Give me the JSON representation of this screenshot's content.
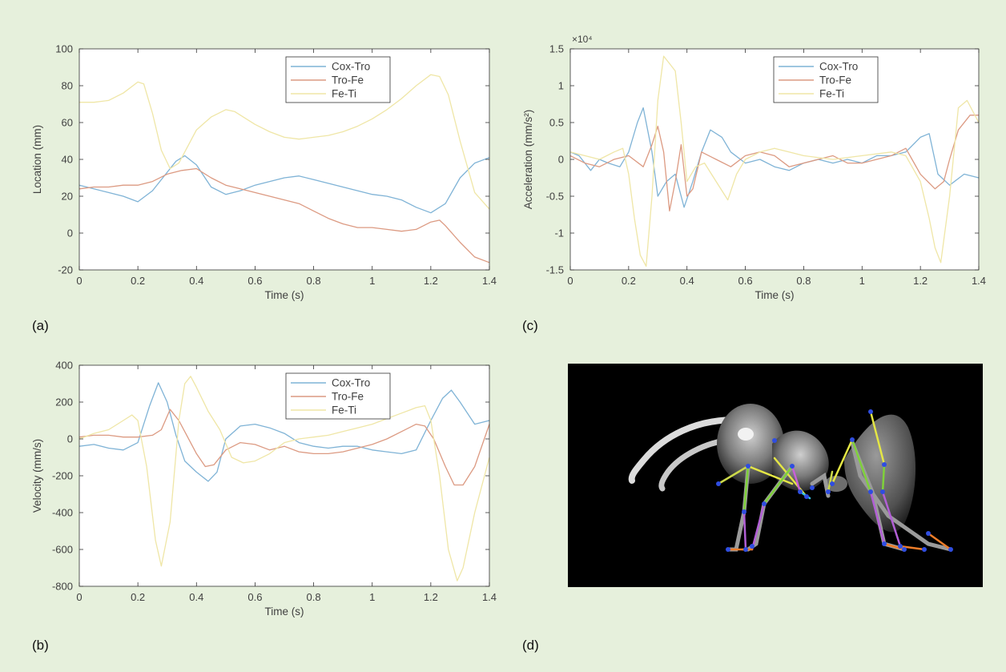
{
  "panel_labels": {
    "a": "(a)",
    "b": "(b)",
    "c": "(c)",
    "d": "(d)"
  },
  "colors": {
    "background": "#e6f0dc",
    "cox_tro": "#7fb3d6",
    "tro_fe": "#dc9a82",
    "fe_ti": "#efe6a6",
    "axis": "#333333"
  },
  "chart_data": [
    {
      "id": "a",
      "type": "line",
      "xlabel": "Time (s)",
      "ylabel": "Location (mm)",
      "xlim": [
        0,
        1.4
      ],
      "ylim": [
        -20,
        100
      ],
      "xticks": [
        0,
        0.2,
        0.4,
        0.6,
        0.8,
        1,
        1.2,
        1.4
      ],
      "xtick_labels": [
        "0",
        "0.2",
        "0.4",
        "0.6",
        "0.8",
        "1",
        "1.2",
        "1.4"
      ],
      "yticks": [
        -20,
        0,
        20,
        40,
        60,
        80,
        100
      ],
      "ytick_labels": [
        "-20",
        "0",
        "20",
        "40",
        "60",
        "80",
        "100"
      ],
      "exponent_label": "",
      "legend": "top-right",
      "series": [
        {
          "name": "Cox-Tro",
          "color": "#7fb3d6",
          "x": [
            0,
            0.05,
            0.1,
            0.15,
            0.2,
            0.25,
            0.3,
            0.33,
            0.36,
            0.4,
            0.45,
            0.5,
            0.55,
            0.6,
            0.65,
            0.7,
            0.75,
            0.8,
            0.85,
            0.9,
            0.95,
            1.0,
            1.05,
            1.1,
            1.15,
            1.2,
            1.25,
            1.3,
            1.35,
            1.4
          ],
          "y": [
            26,
            24,
            22,
            20,
            17,
            23,
            33,
            39,
            42,
            37,
            25,
            21,
            23,
            26,
            28,
            30,
            31,
            29,
            27,
            25,
            23,
            21,
            20,
            18,
            14,
            11,
            16,
            30,
            38,
            41
          ]
        },
        {
          "name": "Tro-Fe",
          "color": "#dc9a82",
          "x": [
            0,
            0.05,
            0.1,
            0.15,
            0.2,
            0.25,
            0.3,
            0.35,
            0.4,
            0.45,
            0.5,
            0.55,
            0.6,
            0.65,
            0.7,
            0.75,
            0.8,
            0.85,
            0.9,
            0.95,
            1.0,
            1.05,
            1.1,
            1.15,
            1.2,
            1.23,
            1.25,
            1.3,
            1.35,
            1.4
          ],
          "y": [
            24,
            25,
            25,
            26,
            26,
            28,
            32,
            34,
            35,
            30,
            26,
            24,
            22,
            20,
            18,
            16,
            12,
            8,
            5,
            3,
            3,
            2,
            1,
            2,
            6,
            7,
            4,
            -5,
            -13,
            -16
          ]
        },
        {
          "name": "Fe-Ti",
          "color": "#efe6a6",
          "x": [
            0,
            0.05,
            0.1,
            0.15,
            0.2,
            0.22,
            0.25,
            0.28,
            0.31,
            0.34,
            0.37,
            0.4,
            0.45,
            0.5,
            0.53,
            0.6,
            0.65,
            0.7,
            0.75,
            0.8,
            0.85,
            0.9,
            0.95,
            1.0,
            1.05,
            1.1,
            1.15,
            1.2,
            1.23,
            1.26,
            1.3,
            1.35,
            1.4
          ],
          "y": [
            71,
            71,
            72,
            76,
            82,
            81,
            65,
            45,
            35,
            38,
            47,
            56,
            63,
            67,
            66,
            59,
            55,
            52,
            51,
            52,
            53,
            55,
            58,
            62,
            67,
            73,
            80,
            86,
            85,
            75,
            50,
            22,
            13
          ]
        }
      ]
    },
    {
      "id": "b",
      "type": "line",
      "xlabel": "Time (s)",
      "ylabel": "Velocity (mm/s)",
      "xlim": [
        0,
        1.4
      ],
      "ylim": [
        -800,
        400
      ],
      "xticks": [
        0,
        0.2,
        0.4,
        0.6,
        0.8,
        1,
        1.2,
        1.4
      ],
      "xtick_labels": [
        "0",
        "0.2",
        "0.4",
        "0.6",
        "0.8",
        "1",
        "1.2",
        "1.4"
      ],
      "yticks": [
        -800,
        -600,
        -400,
        -200,
        0,
        200,
        400
      ],
      "ytick_labels": [
        "-800",
        "-600",
        "-400",
        "-200",
        "0",
        "200",
        "400"
      ],
      "exponent_label": "",
      "legend": "top-right",
      "series": [
        {
          "name": "Cox-Tro",
          "color": "#7fb3d6",
          "x": [
            0,
            0.05,
            0.1,
            0.15,
            0.2,
            0.24,
            0.27,
            0.3,
            0.33,
            0.36,
            0.4,
            0.44,
            0.47,
            0.5,
            0.55,
            0.6,
            0.65,
            0.7,
            0.75,
            0.8,
            0.85,
            0.9,
            0.95,
            1.0,
            1.05,
            1.1,
            1.15,
            1.2,
            1.24,
            1.27,
            1.3,
            1.35,
            1.4
          ],
          "y": [
            -40,
            -30,
            -50,
            -60,
            -20,
            180,
            305,
            200,
            20,
            -120,
            -180,
            -230,
            -180,
            0,
            70,
            80,
            60,
            30,
            -20,
            -40,
            -50,
            -40,
            -40,
            -60,
            -70,
            -80,
            -60,
            100,
            220,
            265,
            200,
            80,
            100
          ]
        },
        {
          "name": "Tro-Fe",
          "color": "#dc9a82",
          "x": [
            0,
            0.05,
            0.1,
            0.15,
            0.2,
            0.25,
            0.28,
            0.31,
            0.34,
            0.37,
            0.4,
            0.43,
            0.46,
            0.5,
            0.55,
            0.6,
            0.65,
            0.7,
            0.75,
            0.8,
            0.85,
            0.9,
            0.95,
            1.0,
            1.05,
            1.1,
            1.15,
            1.18,
            1.21,
            1.25,
            1.28,
            1.31,
            1.35,
            1.4
          ],
          "y": [
            10,
            20,
            20,
            10,
            10,
            20,
            50,
            160,
            100,
            10,
            -80,
            -150,
            -140,
            -60,
            -20,
            -30,
            -60,
            -40,
            -70,
            -80,
            -80,
            -70,
            -50,
            -30,
            0,
            40,
            80,
            70,
            0,
            -150,
            -250,
            -250,
            -150,
            80
          ]
        },
        {
          "name": "Fe-Ti",
          "color": "#efe6a6",
          "x": [
            0,
            0.05,
            0.1,
            0.15,
            0.18,
            0.2,
            0.23,
            0.26,
            0.28,
            0.31,
            0.34,
            0.36,
            0.38,
            0.4,
            0.44,
            0.48,
            0.52,
            0.56,
            0.6,
            0.65,
            0.7,
            0.75,
            0.8,
            0.85,
            0.9,
            0.95,
            1.0,
            1.05,
            1.1,
            1.15,
            1.18,
            1.2,
            1.23,
            1.26,
            1.29,
            1.31,
            1.35,
            1.4
          ],
          "y": [
            0,
            30,
            50,
            100,
            130,
            100,
            -150,
            -550,
            -690,
            -450,
            100,
            300,
            340,
            280,
            150,
            50,
            -100,
            -130,
            -120,
            -80,
            -20,
            0,
            10,
            20,
            40,
            60,
            80,
            110,
            140,
            170,
            180,
            100,
            -200,
            -600,
            -770,
            -700,
            -400,
            -100
          ]
        }
      ]
    },
    {
      "id": "c",
      "type": "line",
      "xlabel": "Time (s)",
      "ylabel": "Acceleration (mm/s²)",
      "xlim": [
        0,
        1.4
      ],
      "ylim": [
        -1.5,
        1.5
      ],
      "xticks": [
        0,
        0.2,
        0.4,
        0.6,
        0.8,
        1,
        1.2,
        1.4
      ],
      "xtick_labels": [
        "0",
        "0.2",
        "0.4",
        "0.6",
        "0.8",
        "1",
        "1.2",
        "1.4"
      ],
      "yticks": [
        -1.5,
        -1,
        -0.5,
        0,
        0.5,
        1,
        1.5
      ],
      "ytick_labels": [
        "-1.5",
        "-1",
        "-0.5",
        "0",
        "0.5",
        "1",
        "1.5"
      ],
      "exponent_label": "×10⁴",
      "legend": "top-right",
      "series": [
        {
          "name": "Cox-Tro",
          "color": "#7fb3d6",
          "x": [
            0,
            0.03,
            0.07,
            0.1,
            0.13,
            0.17,
            0.2,
            0.23,
            0.25,
            0.28,
            0.3,
            0.33,
            0.36,
            0.39,
            0.42,
            0.45,
            0.48,
            0.52,
            0.55,
            0.6,
            0.65,
            0.7,
            0.75,
            0.8,
            0.85,
            0.9,
            0.95,
            1.0,
            1.05,
            1.1,
            1.15,
            1.2,
            1.23,
            1.26,
            1.3,
            1.35,
            1.4
          ],
          "y": [
            0.1,
            0.05,
            -0.15,
            0.0,
            -0.05,
            -0.1,
            0.1,
            0.5,
            0.7,
            0.1,
            -0.5,
            -0.3,
            -0.2,
            -0.65,
            -0.3,
            0.1,
            0.4,
            0.3,
            0.1,
            -0.05,
            0.0,
            -0.1,
            -0.15,
            -0.05,
            0.0,
            -0.05,
            0.0,
            -0.05,
            0.05,
            0.05,
            0.1,
            0.3,
            0.35,
            -0.2,
            -0.35,
            -0.2,
            -0.25
          ]
        },
        {
          "name": "Tro-Fe",
          "color": "#dc9a82",
          "x": [
            0,
            0.05,
            0.1,
            0.15,
            0.2,
            0.25,
            0.28,
            0.3,
            0.32,
            0.34,
            0.36,
            0.38,
            0.4,
            0.42,
            0.45,
            0.5,
            0.55,
            0.6,
            0.65,
            0.7,
            0.75,
            0.8,
            0.85,
            0.9,
            0.95,
            1.0,
            1.05,
            1.1,
            1.15,
            1.2,
            1.25,
            1.28,
            1.3,
            1.33,
            1.37,
            1.4
          ],
          "y": [
            0.05,
            -0.05,
            -0.1,
            0.0,
            0.05,
            -0.1,
            0.2,
            0.45,
            0.1,
            -0.7,
            -0.3,
            0.2,
            -0.5,
            -0.4,
            0.1,
            0.0,
            -0.1,
            0.05,
            0.1,
            0.05,
            -0.1,
            -0.05,
            0.0,
            0.05,
            -0.05,
            -0.05,
            0.0,
            0.05,
            0.15,
            -0.2,
            -0.4,
            -0.3,
            0.0,
            0.4,
            0.6,
            0.6
          ]
        },
        {
          "name": "Fe-Ti",
          "color": "#efe6a6",
          "x": [
            0,
            0.05,
            0.1,
            0.15,
            0.18,
            0.2,
            0.22,
            0.24,
            0.26,
            0.28,
            0.3,
            0.32,
            0.34,
            0.36,
            0.38,
            0.4,
            0.43,
            0.46,
            0.5,
            0.54,
            0.57,
            0.6,
            0.65,
            0.7,
            0.75,
            0.8,
            0.9,
            1.0,
            1.1,
            1.15,
            1.2,
            1.23,
            1.25,
            1.27,
            1.3,
            1.33,
            1.36,
            1.4
          ],
          "y": [
            0.1,
            0.05,
            0.0,
            0.1,
            0.15,
            -0.2,
            -0.8,
            -1.3,
            -1.45,
            -0.5,
            0.8,
            1.4,
            1.3,
            1.2,
            0.5,
            -0.3,
            -0.1,
            -0.05,
            -0.3,
            -0.55,
            -0.2,
            0.0,
            0.1,
            0.15,
            0.1,
            0.05,
            0.0,
            0.05,
            0.1,
            0.05,
            -0.3,
            -0.8,
            -1.2,
            -1.4,
            -0.5,
            0.7,
            0.8,
            0.5
          ]
        }
      ]
    }
  ]
}
